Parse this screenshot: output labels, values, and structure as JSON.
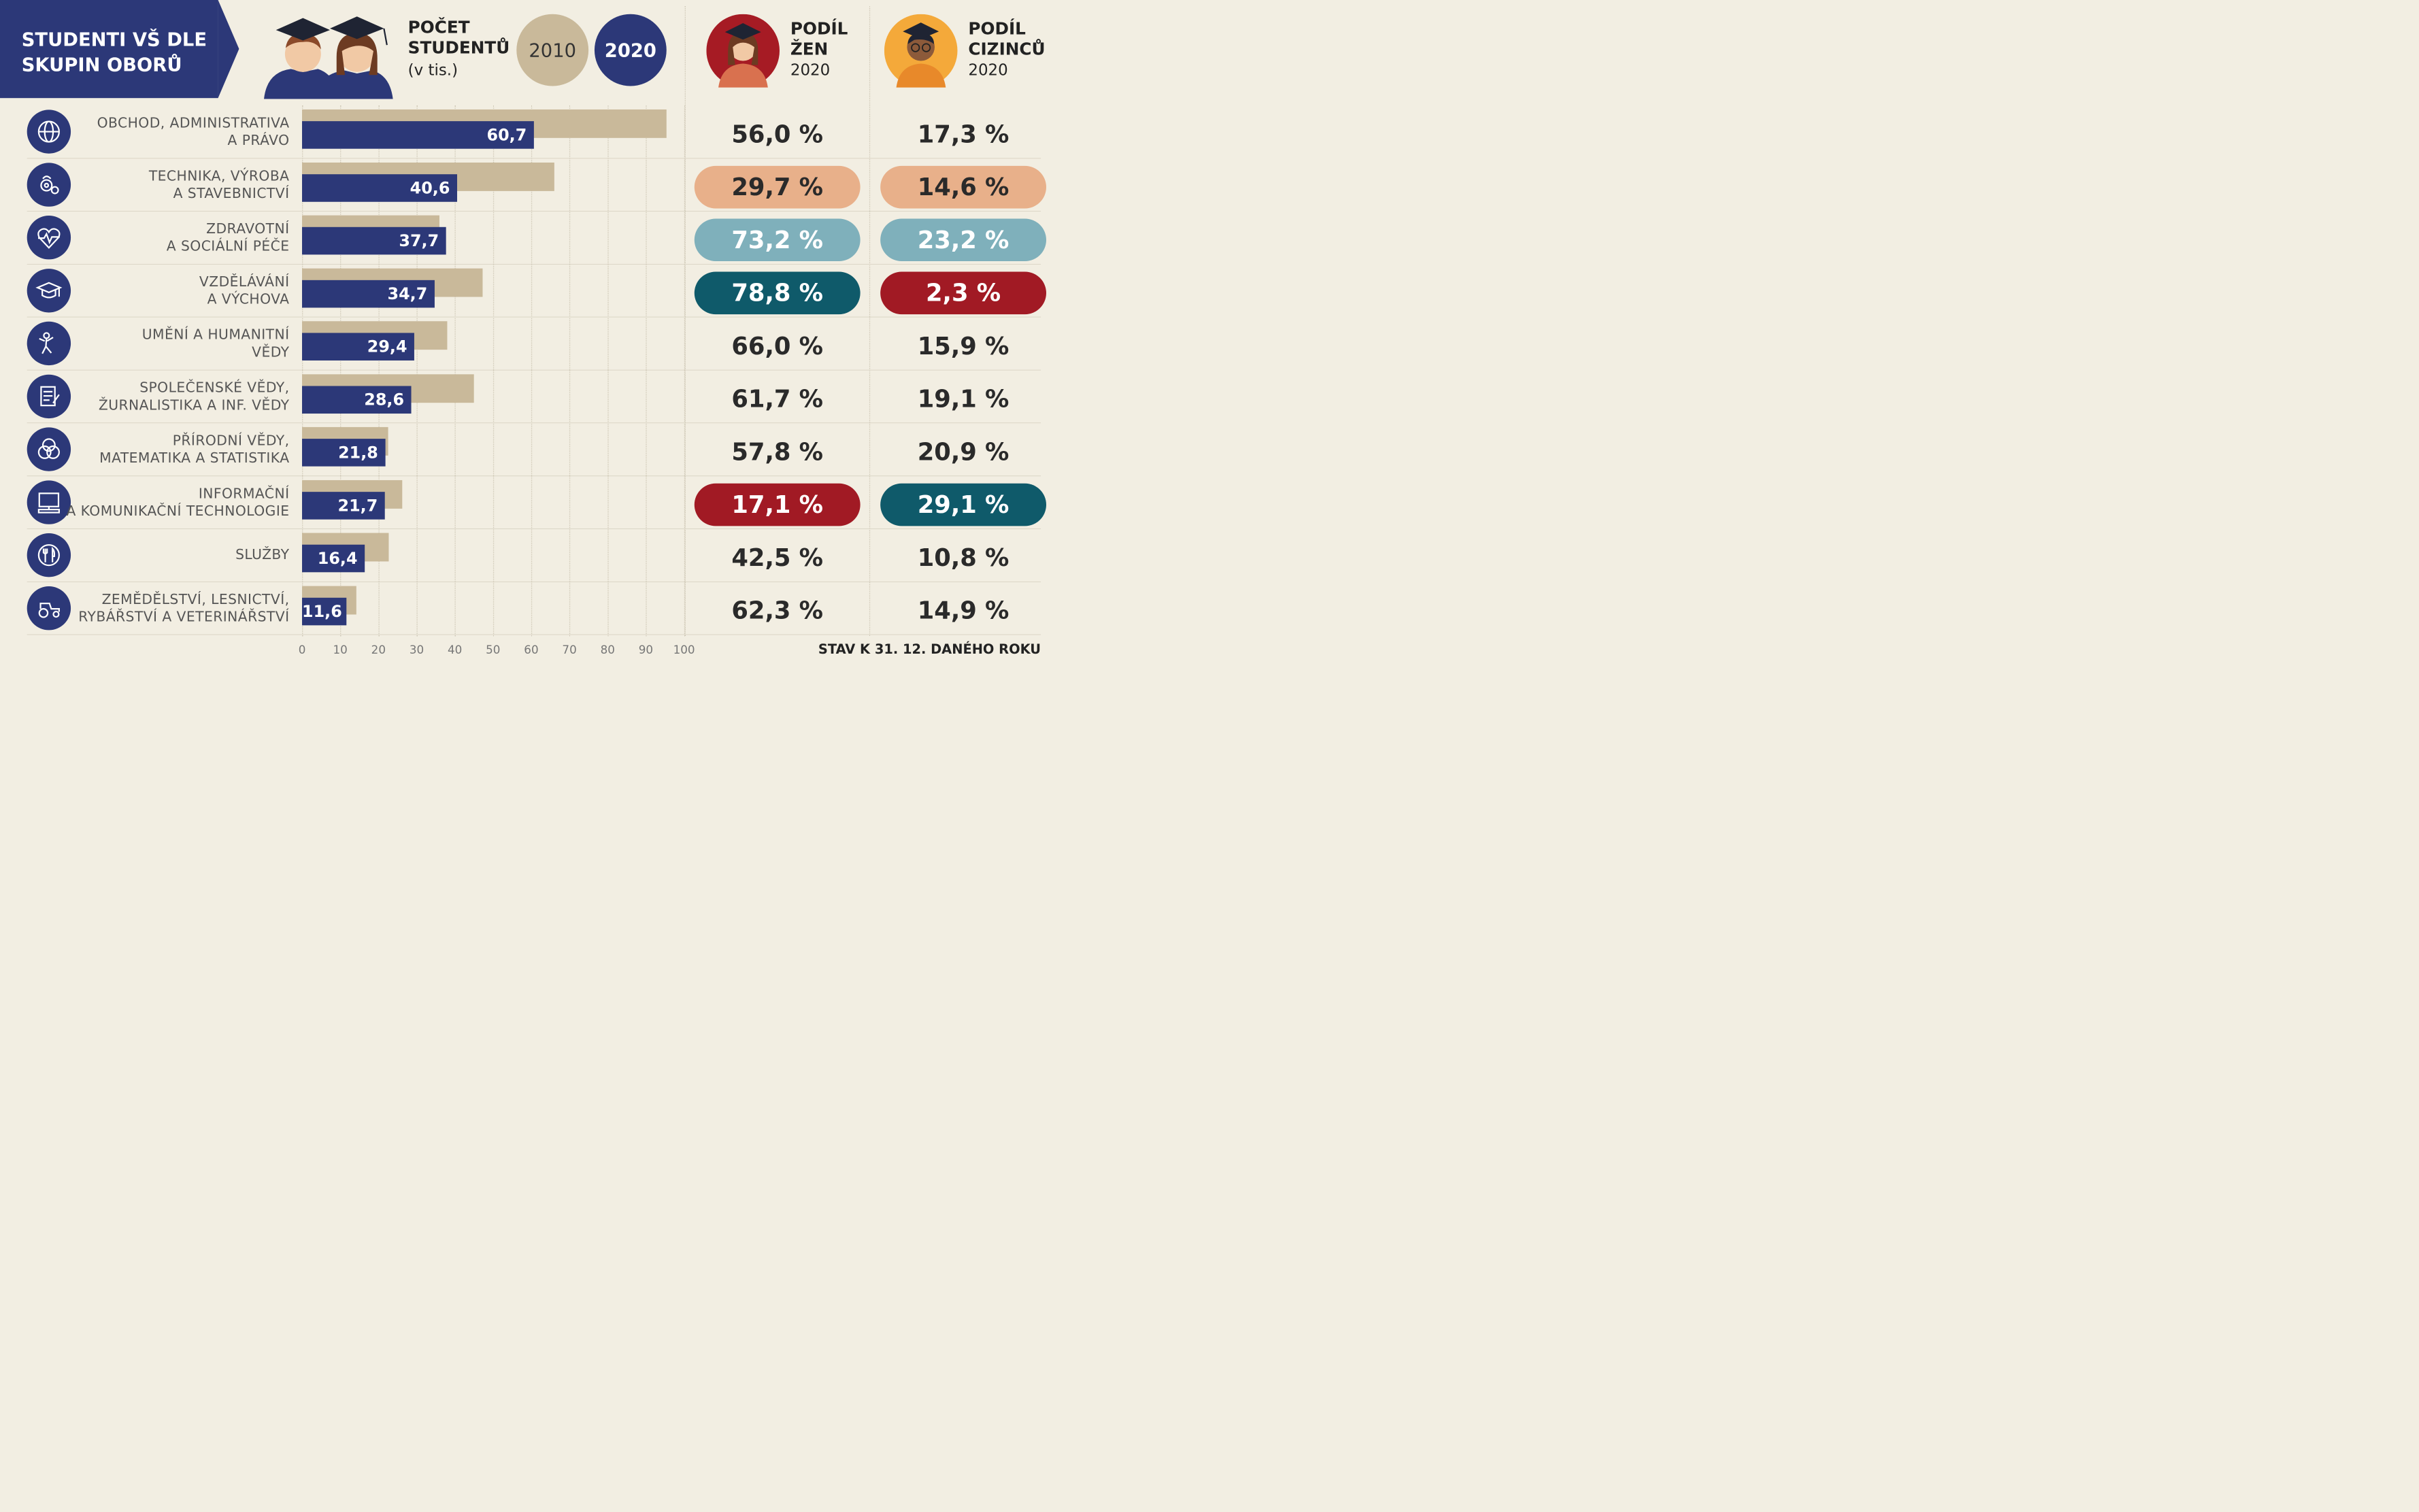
{
  "title": "STUDENTI VŠ DLE SKUPIN OBORŮ",
  "header": {
    "count_title": "POČET STUDENTŮ",
    "count_unit": "(v tis.)",
    "year_2010": "2010",
    "year_2020": "2020",
    "women_title": "PODÍL ŽEN",
    "women_year": "2020",
    "foreign_title": "PODÍL CIZINCŮ",
    "foreign_year": "2020"
  },
  "footer_note": "STAV K 31. 12. DANÉHO ROKU",
  "colors": {
    "navy": "#2c3878",
    "tan": "#c9b99a",
    "background": "#f2eee2",
    "orange_pill": "#e8b08a",
    "light_blue_pill": "#7fb0bb",
    "teal_pill": "#0f5a6a",
    "red_pill": "#a11a24"
  },
  "chart_data": {
    "type": "bar",
    "xlim": [
      0,
      100
    ],
    "ticks": [
      "0",
      "10",
      "20",
      "30",
      "40",
      "50",
      "60",
      "70",
      "80",
      "90",
      "100"
    ],
    "series": [
      {
        "name": "2010",
        "values": [
          95.4,
          66.0,
          36.0,
          47.3,
          38.0,
          45.0,
          22.5,
          26.2,
          22.7,
          14.2
        ]
      },
      {
        "name": "2020",
        "values": [
          60.7,
          40.6,
          37.7,
          34.7,
          29.4,
          28.6,
          21.8,
          21.7,
          16.4,
          11.6
        ]
      }
    ],
    "value_labels": [
      "60,7",
      "40,6",
      "37,7",
      "34,7",
      "29,4",
      "28,6",
      "21,8",
      "21,7",
      "16,4",
      "11,6"
    ],
    "categories": [
      {
        "line1": "OBCHOD, ADMINISTRATIVA",
        "line2": "A PRÁVO"
      },
      {
        "line1": "TECHNIKA, VÝROBA",
        "line2": "A STAVEBNICTVÍ"
      },
      {
        "line1": "ZDRAVOTNÍ",
        "line2": "A SOCIÁLNÍ PÉČE"
      },
      {
        "line1": "VZDĚLÁVÁNÍ",
        "line2": "A VÝCHOVA"
      },
      {
        "line1": "UMĚNÍ A HUMANITNÍ",
        "line2": "VĚDY"
      },
      {
        "line1": "SPOLEČENSKÉ VĚDY,",
        "line2": "ŽURNALISTIKA A INF. VĚDY"
      },
      {
        "line1": "PŘÍRODNÍ VĚDY,",
        "line2": "MATEMATIKA A STATISTIKA"
      },
      {
        "line1": "INFORMAČNÍ",
        "line2": "A KOMUNIKAČNÍ TECHNOLOGIE"
      },
      {
        "line1": "",
        "line2": "SLUŽBY"
      },
      {
        "line1": "ZEMĚDĚLSTVÍ, LESNICTVÍ,",
        "line2": "RYBÁŘSTVÍ A VETERINÁŘSTVÍ"
      }
    ],
    "icons": [
      "globe-icon",
      "gears-icon",
      "heart-pulse-icon",
      "graduation-cap-icon",
      "theatre-icon",
      "document-icon",
      "venn-diagram-icon",
      "computer-icon",
      "cutlery-icon",
      "tractor-icon"
    ],
    "women_share": [
      "56,0 %",
      "29,7 %",
      "73,2 %",
      "78,8 %",
      "66,0 %",
      "61,7 %",
      "57,8 %",
      "17,1 %",
      "42,5 %",
      "62,3 %"
    ],
    "women_highlight": [
      "none",
      "orange",
      "lightblue",
      "teal",
      "none",
      "none",
      "none",
      "red",
      "none",
      "none"
    ],
    "foreign_share": [
      "17,3 %",
      "14,6 %",
      "23,2 %",
      "2,3 %",
      "15,9 %",
      "19,1 %",
      "20,9 %",
      "29,1 %",
      "10,8 %",
      "14,9 %"
    ],
    "foreign_highlight": [
      "none",
      "orange",
      "lightblue",
      "red",
      "none",
      "none",
      "none",
      "teal",
      "none",
      "none"
    ]
  }
}
